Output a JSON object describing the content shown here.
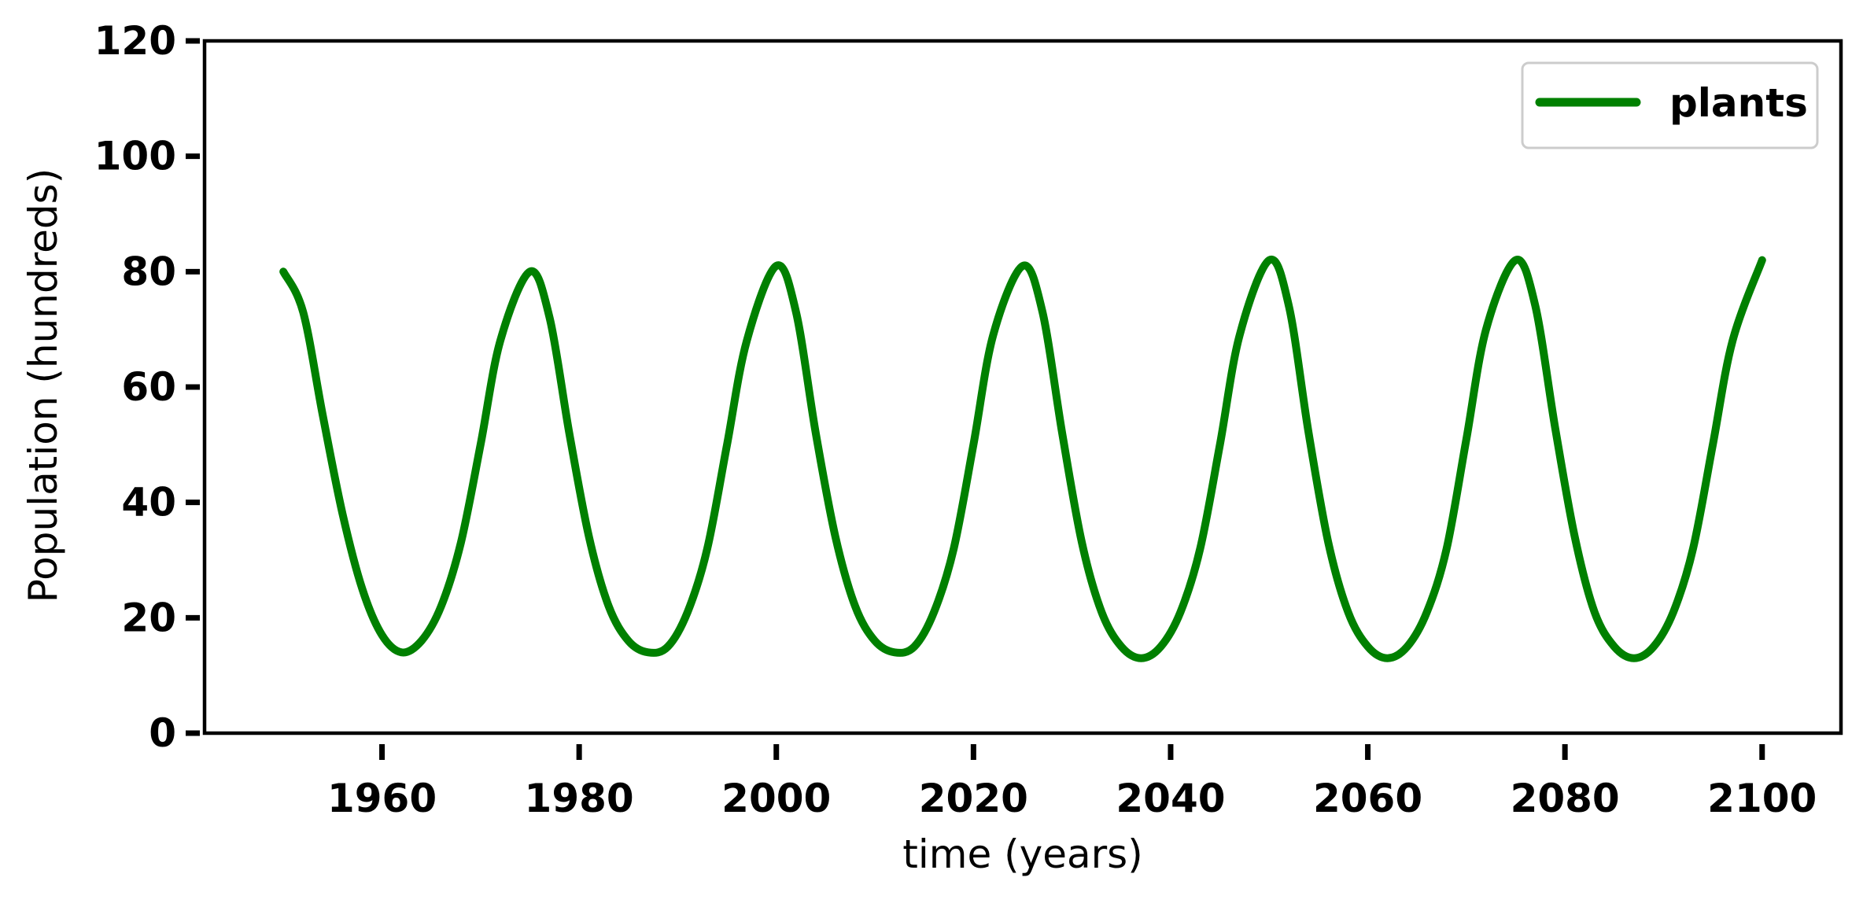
{
  "chart_data": {
    "type": "line",
    "title": "",
    "xlabel": "time (years)",
    "ylabel": "Population (hundreds)",
    "xlim": [
      1942,
      2108
    ],
    "ylim": [
      0,
      120
    ],
    "x_ticks": [
      1960,
      1980,
      2000,
      2020,
      2040,
      2060,
      2080,
      2100
    ],
    "y_ticks": [
      0,
      20,
      40,
      60,
      80,
      100,
      120
    ],
    "grid": false,
    "legend_position": "top-right",
    "series": [
      {
        "name": "plants",
        "color": "#008000",
        "x": [
          1950,
          1952,
          1954,
          1956,
          1958,
          1960,
          1962,
          1964,
          1966,
          1968,
          1970,
          1972,
          1975,
          1977,
          1979,
          1981,
          1983,
          1985,
          1987,
          1989,
          1991,
          1993,
          1995,
          1997,
          2000,
          2002,
          2004,
          2006,
          2008,
          2010,
          2012,
          2014,
          2016,
          2018,
          2020,
          2022,
          2025,
          2027,
          2029,
          2031,
          2033,
          2035,
          2037,
          2039,
          2041,
          2043,
          2045,
          2047,
          2050,
          2052,
          2054,
          2056,
          2058,
          2060,
          2062,
          2064,
          2066,
          2068,
          2070,
          2072,
          2075,
          2077,
          2079,
          2081,
          2083,
          2085,
          2087,
          2089,
          2091,
          2093,
          2095,
          2097,
          2100
        ],
        "y": [
          80,
          73,
          55,
          38,
          25,
          17,
          14,
          16,
          22,
          33,
          50,
          68,
          80,
          72,
          52,
          34,
          22,
          16,
          14,
          15,
          21,
          32,
          50,
          68,
          81,
          73,
          52,
          34,
          22,
          16,
          14,
          15,
          21,
          32,
          50,
          69,
          81,
          73,
          52,
          33,
          21,
          15,
          13,
          15,
          21,
          32,
          50,
          69,
          82,
          74,
          52,
          33,
          21,
          15,
          13,
          15,
          21,
          32,
          51,
          70,
          82,
          74,
          53,
          34,
          21,
          15,
          13,
          15,
          21,
          32,
          50,
          68,
          82
        ]
      }
    ]
  }
}
